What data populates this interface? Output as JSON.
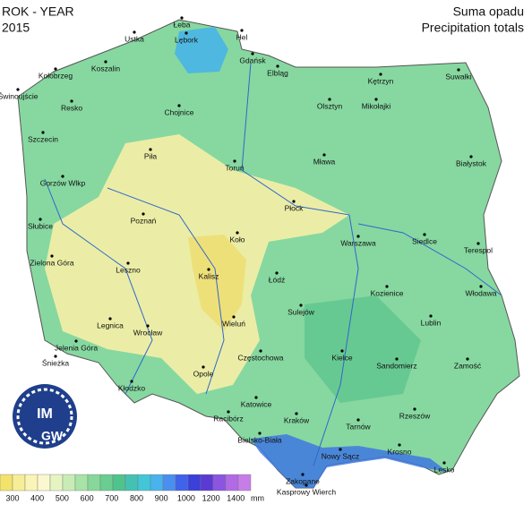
{
  "header": {
    "title_pl": "ROK - YEAR",
    "year": "2015",
    "subtitle_pl": "Suma opadu",
    "subtitle_en": "Precipitation totals"
  },
  "logo": {
    "top": "IM",
    "bottom": "GW"
  },
  "cities": [
    "Łeba",
    "Lębork",
    "Hel",
    "Ustka",
    "Gdańsk",
    "Koszalin",
    "Kołobrzeg",
    "Świnoujście",
    "Elbląg",
    "Kętrzyn",
    "Suwałki",
    "Resko",
    "Olsztyn",
    "Mikołajki",
    "Chojnice",
    "Szczecin",
    "Piła",
    "Toruń",
    "Mława",
    "Białystok",
    "Gorzów Wlkp",
    "Płock",
    "Słubice",
    "Poznań",
    "Koło",
    "Warszawa",
    "Siedlce",
    "Terespol",
    "Zielona Góra",
    "Leszno",
    "Kalisz",
    "Łódź",
    "Kozienice",
    "Włodawa",
    "Sulejów",
    "Lublin",
    "Legnica",
    "Wrocław",
    "Wieluń",
    "Jelenia Góra",
    "Śnieżka",
    "Częstochowa",
    "Kielce",
    "Sandomierz",
    "Zamość",
    "Opole",
    "Kłodzko",
    "Katowice",
    "Kraków",
    "Rzeszów",
    "Racibórz",
    "Tarnów",
    "Bielsko-Biała",
    "Krosno",
    "Nowy Sącz",
    "Lesko",
    "Zakopane",
    "Kasprowy Wierch"
  ],
  "legend": {
    "colors": [
      "#f3e36a",
      "#f6ee96",
      "#faf4b8",
      "#fbf8cf",
      "#e6f4c2",
      "#c9ecb6",
      "#a8e3a8",
      "#87d89a",
      "#6acd91",
      "#4fc38c",
      "#43c2b4",
      "#42c6d8",
      "#48b3ec",
      "#4a8ff0",
      "#3f63ea",
      "#3a40d8",
      "#5b3ad4",
      "#8b55e0",
      "#b06ae6",
      "#c77de8"
    ],
    "labels": [
      "300",
      "400",
      "500",
      "600",
      "700",
      "800",
      "900",
      "1000",
      "1200",
      "1400"
    ],
    "unit": "mm"
  }
}
